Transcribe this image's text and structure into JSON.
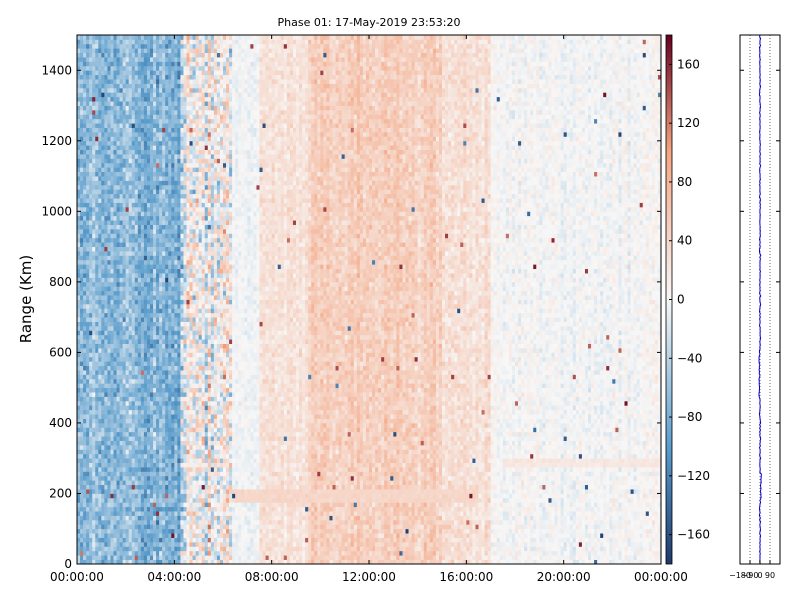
{
  "chart_data": {
    "type": "heatmap",
    "title": "Phase 01: 17-May-2019 23:53:20",
    "ylabel": "Range (Km)",
    "x_ticks": [
      "00:00:00",
      "04:00:00",
      "08:00:00",
      "12:00:00",
      "16:00:00",
      "20:00:00",
      "00:00:00"
    ],
    "x_tick_hours": [
      0,
      4,
      8,
      12,
      16,
      20,
      24
    ],
    "xlim_hours": [
      0,
      24
    ],
    "ylim": [
      0,
      1500
    ],
    "y_ticks": [
      0,
      200,
      400,
      600,
      800,
      1000,
      1200,
      1400
    ],
    "grid": false,
    "colorbar": {
      "range": [
        -180,
        180
      ],
      "ticks": [
        -160,
        -120,
        -80,
        -40,
        0,
        40,
        80,
        120,
        160
      ],
      "colormap": "RdBu_r",
      "colors": [
        "#1f3a6b",
        "#5a9ccb",
        "#f7f7f7",
        "#f4a582",
        "#67001f"
      ]
    },
    "time_segments": [
      {
        "start_h": 0.0,
        "end_h": 4.3,
        "mean_phase": -70,
        "noise": 30
      },
      {
        "start_h": 4.3,
        "end_h": 6.4,
        "mean_phase": 0,
        "noise": 55
      },
      {
        "start_h": 6.4,
        "end_h": 7.5,
        "mean_phase": -5,
        "noise": 10
      },
      {
        "start_h": 7.5,
        "end_h": 9.5,
        "mean_phase": 25,
        "noise": 15
      },
      {
        "start_h": 9.5,
        "end_h": 15.0,
        "mean_phase": 50,
        "noise": 20
      },
      {
        "start_h": 15.0,
        "end_h": 17.0,
        "mean_phase": 30,
        "noise": 18
      },
      {
        "start_h": 17.0,
        "end_h": 24.0,
        "mean_phase": 0,
        "noise": 12
      }
    ],
    "features": [
      {
        "name": "layer",
        "range_km": 195,
        "start_h": 6.4,
        "end_h": 16.5,
        "phase": 40
      },
      {
        "name": "layer",
        "range_km": 290,
        "start_h": 17.5,
        "end_h": 24.0,
        "phase": 20
      }
    ],
    "side_panel": {
      "type": "line",
      "x_ticks": [
        -180,
        -90,
        0,
        90
      ],
      "x_tick_labels": [
        "−180",
        "−90",
        "0",
        "90"
      ],
      "xlim": [
        -180,
        180
      ],
      "ylim": [
        0,
        1500
      ],
      "line_color": "#0000cc",
      "mean_phase": 0,
      "dotted_grid_x": [
        -90,
        0,
        90
      ]
    }
  }
}
